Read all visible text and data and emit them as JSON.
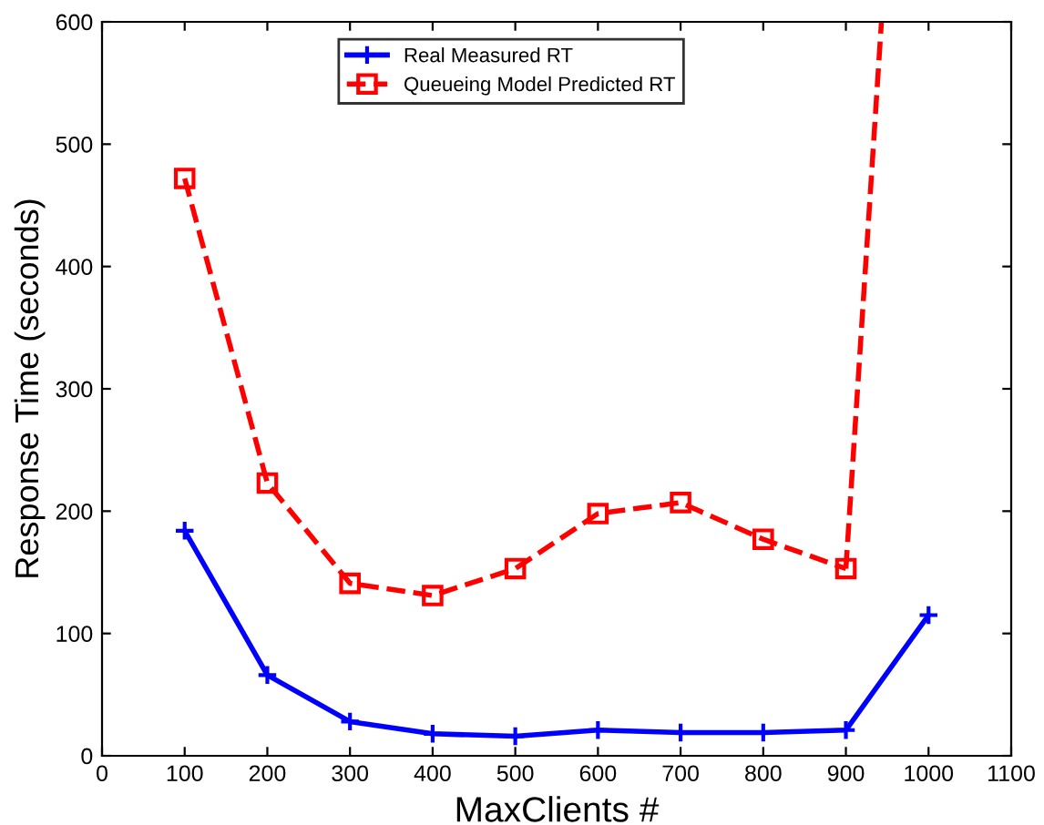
{
  "chart_data": {
    "type": "line",
    "xlabel": "MaxClients #",
    "ylabel": "Response Time (seconds)",
    "x": [
      100,
      200,
      300,
      400,
      500,
      600,
      700,
      800,
      900,
      1000
    ],
    "series": [
      {
        "name": "Real Measured RT",
        "color": "#0000ff",
        "marker": "cross",
        "line_style": "solid",
        "values": [
          184,
          66,
          28,
          18,
          16,
          21,
          19,
          19,
          21,
          115
        ]
      },
      {
        "name": "Queueing Model Predicted RT",
        "color": "#ff0000",
        "marker": "square",
        "line_style": "dashed",
        "values": [
          472,
          223,
          141,
          131,
          153,
          198,
          207,
          177,
          153,
          null
        ]
      },
      {
        "color": "#ff0000",
        "marker": "none",
        "line_style": "dashed",
        "x": [
          900,
          943
        ],
        "values": [
          153,
          600
        ]
      }
    ],
    "xlim": [
      0,
      1100
    ],
    "xticks": [
      0,
      100,
      200,
      300,
      400,
      500,
      600,
      700,
      800,
      900,
      1000,
      1100
    ],
    "ylim": [
      0,
      600
    ],
    "yticks": [
      0,
      100,
      200,
      300,
      400,
      500,
      600
    ],
    "grid": false,
    "legend": "top center"
  }
}
